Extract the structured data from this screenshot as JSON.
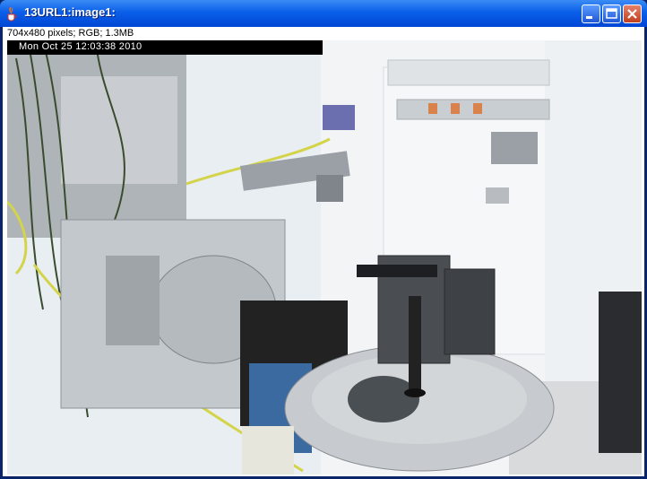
{
  "window": {
    "title": "13URL1:image1:",
    "icon": "java-cup-icon",
    "controls": {
      "minimize": "minimize-icon",
      "maximize": "maximize-icon",
      "close": "close-icon"
    }
  },
  "image_info": "704x480 pixels; RGB; 1.3MB",
  "camera_overlay": {
    "timestamp": "Mon Oct 25  12:03:38  2010"
  },
  "colors": {
    "titlebar": "#0a5fe8",
    "close_button": "#c0401f",
    "overlay_bar": "#000000"
  }
}
